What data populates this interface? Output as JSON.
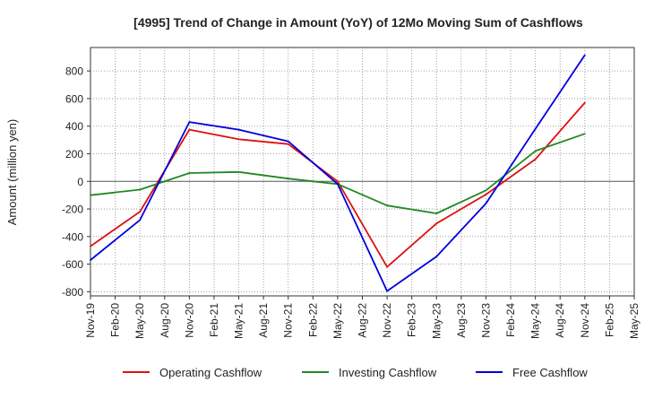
{
  "chart_data": {
    "type": "line",
    "title": "[4995]  Trend of Change in Amount (YoY) of 12Mo Moving Sum of Cashflows",
    "xlabel": "",
    "ylabel": "Amount (million yen)",
    "ylim": [
      -830,
      970
    ],
    "yticks": [
      -800,
      -600,
      -400,
      -200,
      0,
      200,
      400,
      600,
      800
    ],
    "grid": true,
    "legend_position": "bottom",
    "categories": [
      "Nov-19",
      "Feb-20",
      "May-20",
      "Aug-20",
      "Nov-20",
      "Feb-21",
      "May-21",
      "Aug-21",
      "Nov-21",
      "Feb-22",
      "May-22",
      "Aug-22",
      "Nov-22",
      "Feb-23",
      "May-23",
      "Aug-23",
      "Nov-23",
      "Feb-24",
      "May-24",
      "Aug-24",
      "Nov-24",
      "Feb-25",
      "May-25"
    ],
    "series": [
      {
        "name": "Operating Cashflow",
        "color": "#dd1111",
        "values": [
          -470,
          null,
          -220,
          null,
          375,
          null,
          305,
          null,
          270,
          null,
          0,
          null,
          -620,
          null,
          -305,
          null,
          -95,
          null,
          160,
          null,
          570,
          null,
          null
        ]
      },
      {
        "name": "Investing Cashflow",
        "color": "#228822",
        "values": [
          -100,
          null,
          -60,
          null,
          60,
          null,
          68,
          null,
          20,
          null,
          -20,
          null,
          -175,
          null,
          -232,
          null,
          -65,
          null,
          220,
          null,
          345,
          null,
          null
        ]
      },
      {
        "name": "Free Cashflow",
        "color": "#0000dd",
        "values": [
          -570,
          null,
          -280,
          null,
          430,
          null,
          375,
          null,
          290,
          null,
          -20,
          null,
          -795,
          null,
          -545,
          null,
          -160,
          null,
          380,
          null,
          915,
          null,
          null
        ]
      }
    ]
  }
}
